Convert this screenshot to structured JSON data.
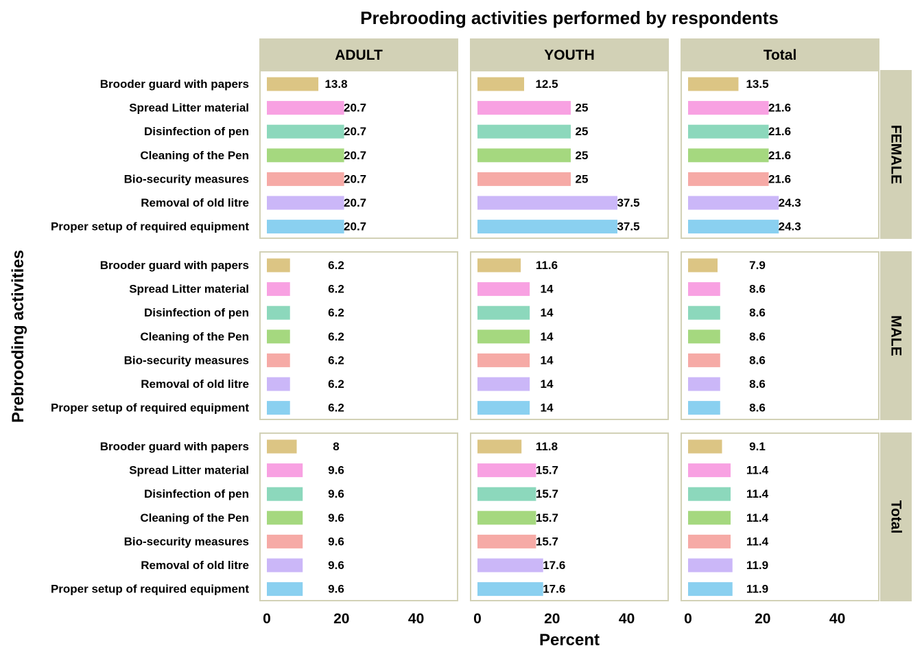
{
  "chart_data": {
    "type": "bar",
    "orientation": "horizontal",
    "title": "Prebrooding activities performed by respondents",
    "xlabel": "Percent",
    "ylabel": "Prebrooding activities",
    "xlim": [
      0,
      50
    ],
    "x_ticks": [
      0,
      20,
      40
    ],
    "grid": false,
    "legend": "none",
    "column_facets": [
      "ADULT",
      "YOUTH",
      "Total"
    ],
    "row_facets": [
      "FEMALE",
      "MALE",
      "Total"
    ],
    "categories": [
      "Brooder guard with papers",
      "Spread Litter material",
      "Disinfection of pen",
      "Cleaning of the Pen",
      "Bio-security measures",
      "Removal of old litre",
      "Proper setup of required equipment"
    ],
    "category_colors": [
      "#dcc584",
      "#f8a1e2",
      "#8cd8bc",
      "#a5d87f",
      "#f6aaa6",
      "#cbb7f8",
      "#8ad0f0"
    ],
    "style": {
      "strip_fill": "#d2d1b6",
      "panel_border": "#d2d1b6",
      "background": "#ffffff"
    },
    "panels": [
      {
        "row": "FEMALE",
        "col": "ADULT",
        "values": [
          13.8,
          20.7,
          20.7,
          20.7,
          20.7,
          20.7,
          20.7
        ],
        "labels": [
          "13.8",
          "20.7",
          "20.7",
          "20.7",
          "20.7",
          "20.7",
          "20.7"
        ]
      },
      {
        "row": "FEMALE",
        "col": "YOUTH",
        "values": [
          12.5,
          25,
          25,
          25,
          25,
          37.5,
          37.5
        ],
        "labels": [
          "12.5",
          "25",
          "25",
          "25",
          "25",
          "37.5",
          "37.5"
        ]
      },
      {
        "row": "FEMALE",
        "col": "Total",
        "values": [
          13.5,
          21.6,
          21.6,
          21.6,
          21.6,
          24.3,
          24.3
        ],
        "labels": [
          "13.5",
          "21.6",
          "21.6",
          "21.6",
          "21.6",
          "24.3",
          "24.3"
        ]
      },
      {
        "row": "MALE",
        "col": "ADULT",
        "values": [
          6.2,
          6.2,
          6.2,
          6.2,
          6.2,
          6.2,
          6.2
        ],
        "labels": [
          "6.2",
          "6.2",
          "6.2",
          "6.2",
          "6.2",
          "6.2",
          "6.2"
        ]
      },
      {
        "row": "MALE",
        "col": "YOUTH",
        "values": [
          11.6,
          14,
          14,
          14,
          14,
          14,
          14
        ],
        "labels": [
          "11.6",
          "14",
          "14",
          "14",
          "14",
          "14",
          "14"
        ]
      },
      {
        "row": "MALE",
        "col": "Total",
        "values": [
          7.9,
          8.6,
          8.6,
          8.6,
          8.6,
          8.6,
          8.6
        ],
        "labels": [
          "7.9",
          "8.6",
          "8.6",
          "8.6",
          "8.6",
          "8.6",
          "8.6"
        ]
      },
      {
        "row": "Total",
        "col": "ADULT",
        "values": [
          8,
          9.6,
          9.6,
          9.6,
          9.6,
          9.6,
          9.6
        ],
        "labels": [
          "8",
          "9.6",
          "9.6",
          "9.6",
          "9.6",
          "9.6",
          "9.6"
        ]
      },
      {
        "row": "Total",
        "col": "YOUTH",
        "values": [
          11.8,
          15.7,
          15.7,
          15.7,
          15.7,
          17.6,
          17.6
        ],
        "labels": [
          "11.8",
          "15.7",
          "15.7",
          "15.7",
          "15.7",
          "17.6",
          "17.6"
        ]
      },
      {
        "row": "Total",
        "col": "Total",
        "values": [
          9.1,
          11.4,
          11.4,
          11.4,
          11.4,
          11.9,
          11.9
        ],
        "labels": [
          "9.1",
          "11.4",
          "11.4",
          "11.4",
          "11.4",
          "11.9",
          "11.9"
        ]
      }
    ]
  }
}
